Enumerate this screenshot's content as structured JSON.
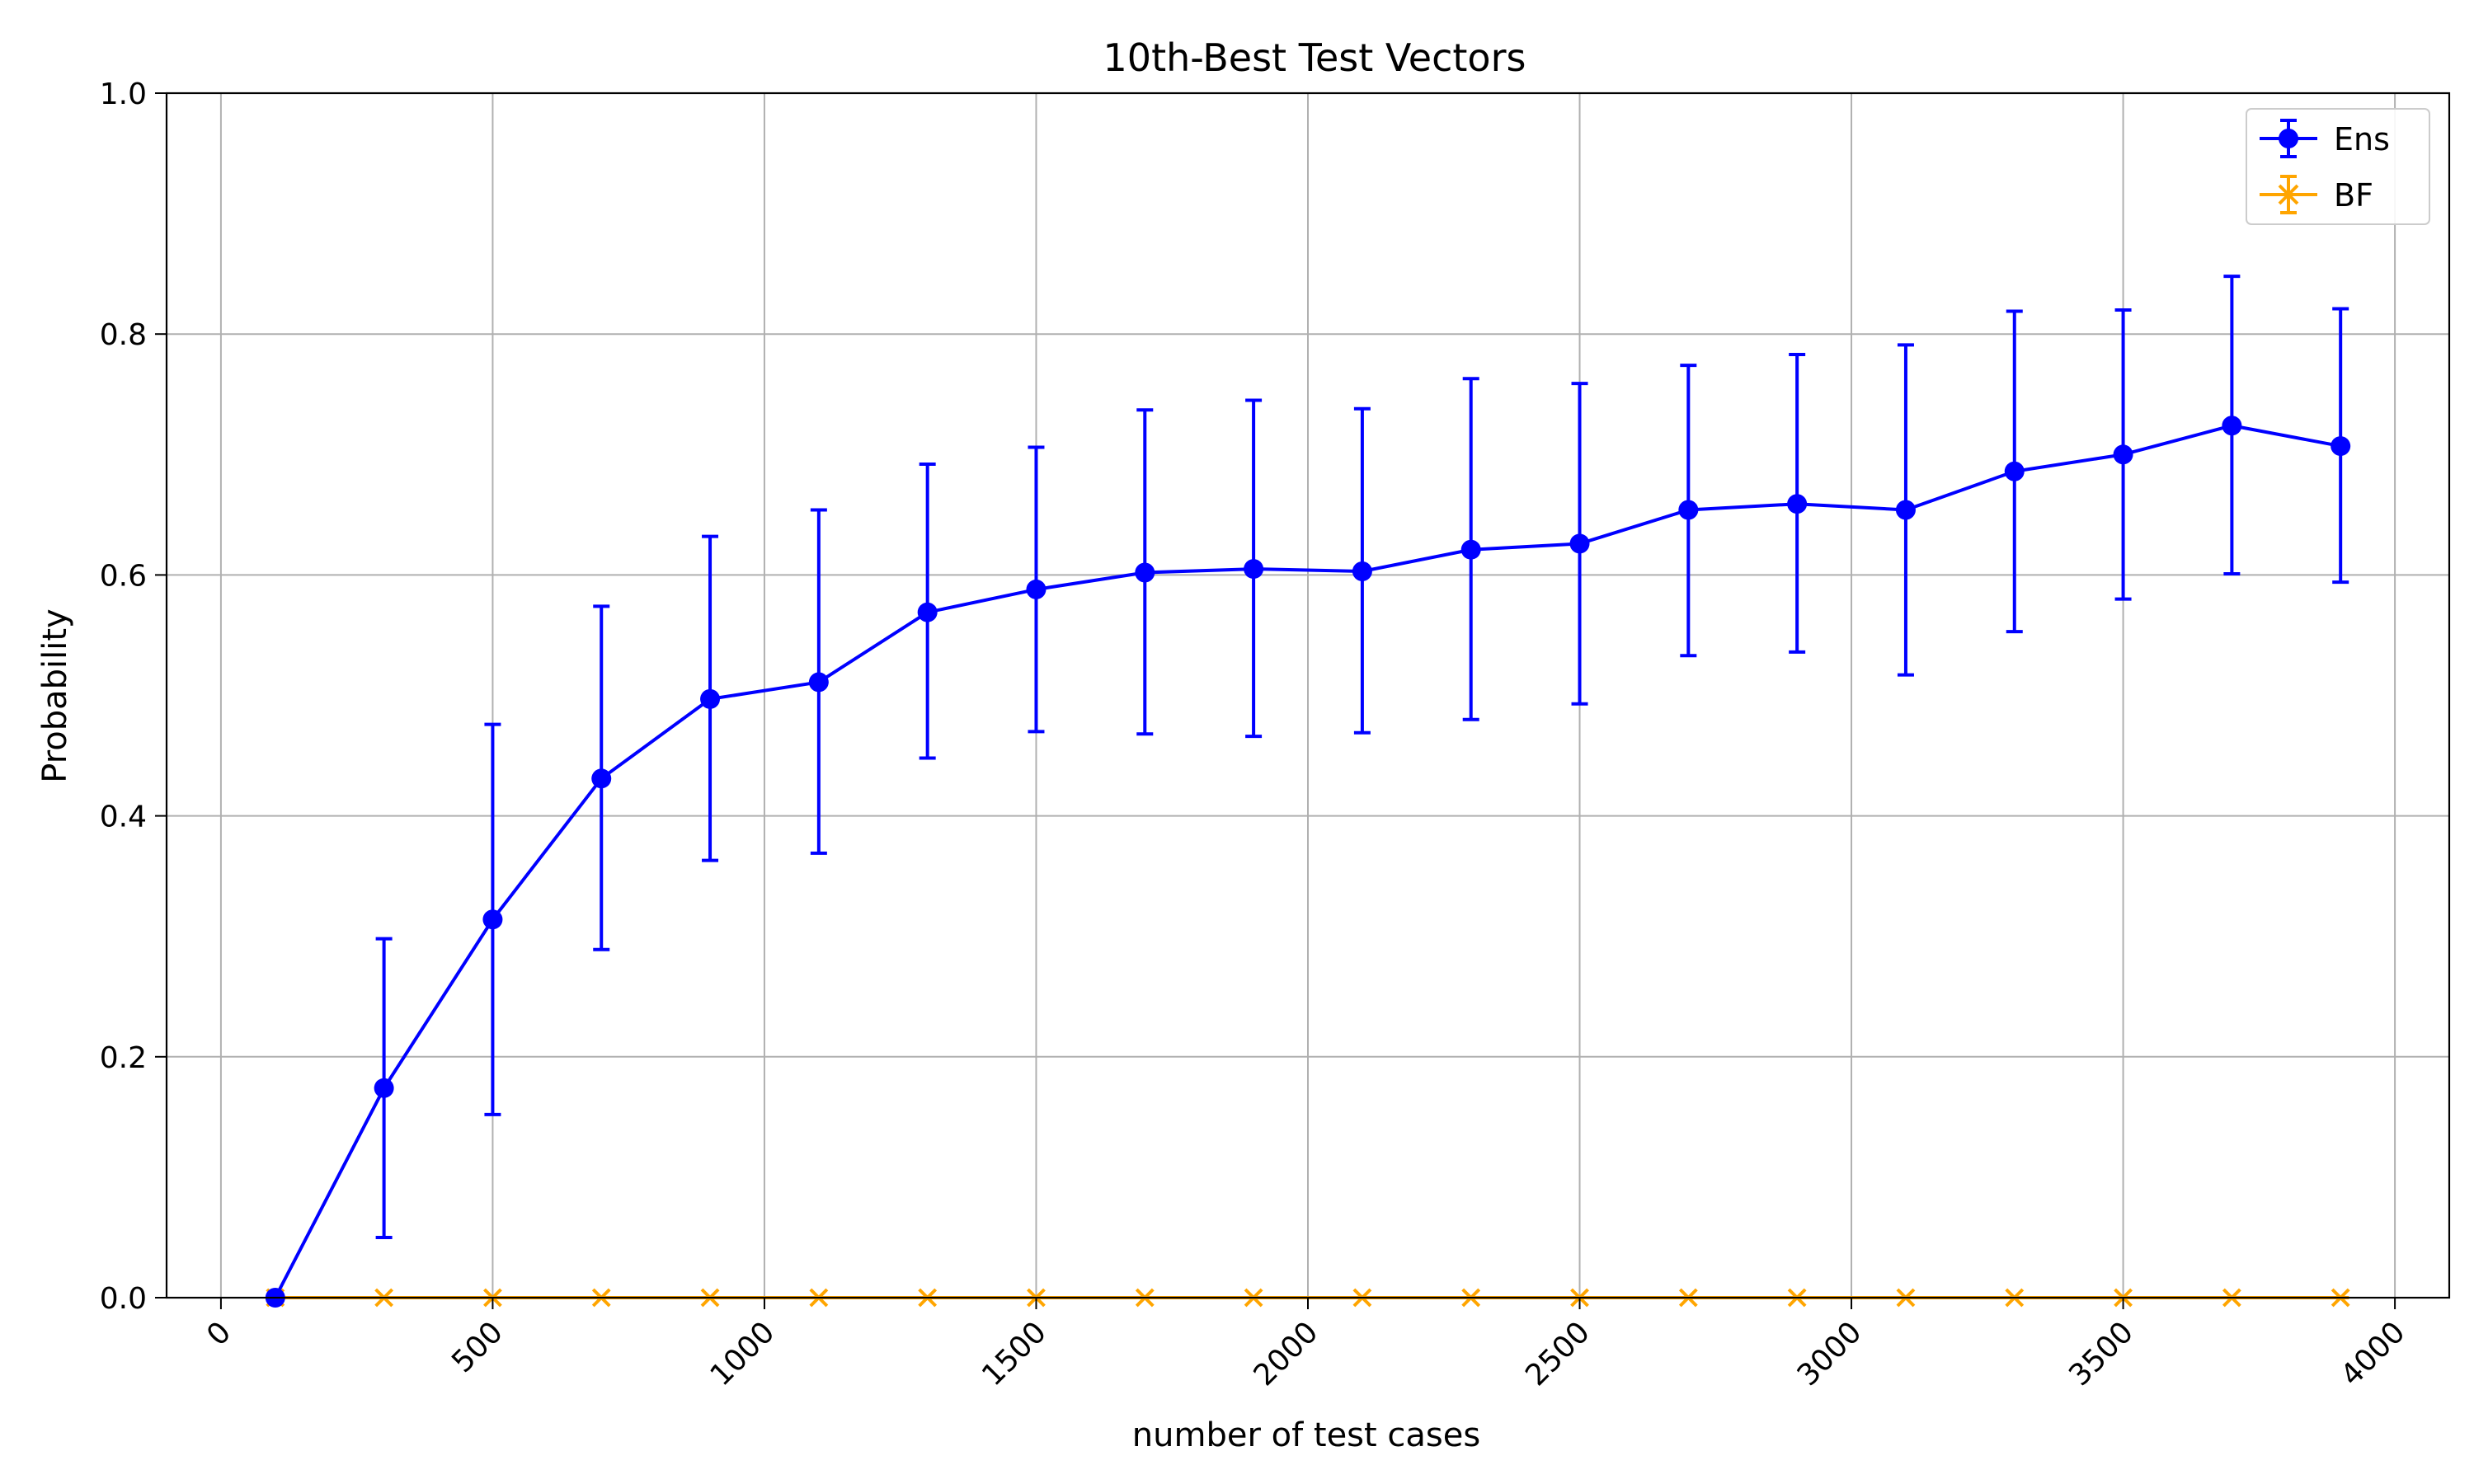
{
  "chart_data": {
    "type": "line",
    "title": "10th-Best Test Vectors",
    "xlabel": "number of test cases",
    "ylabel": "Probability",
    "xlim": [
      -100,
      4100
    ],
    "ylim": [
      0.0,
      1.0
    ],
    "grid": true,
    "legend_position": "top-right",
    "x_ticks": [
      0,
      500,
      1000,
      1500,
      2000,
      2500,
      3000,
      3500,
      4000
    ],
    "x_tick_labels": [
      "0",
      "500",
      "1000",
      "1500",
      "2000",
      "2500",
      "3000",
      "3500",
      "4000"
    ],
    "y_ticks": [
      0.0,
      0.2,
      0.4,
      0.6,
      0.8,
      1.0
    ],
    "y_tick_labels": [
      "0.0",
      "0.2",
      "0.4",
      "0.6",
      "0.8",
      "1.0"
    ],
    "x": [
      100,
      300,
      500,
      700,
      900,
      1100,
      1300,
      1500,
      1700,
      1900,
      2100,
      2300,
      2500,
      2700,
      2900,
      3100,
      3300,
      3500,
      3700,
      3900
    ],
    "series": [
      {
        "name": "Ens",
        "color": "#0000ff",
        "marker": "circle",
        "values": [
          0.0,
          0.174,
          0.314,
          0.431,
          0.497,
          0.511,
          0.569,
          0.588,
          0.602,
          0.605,
          0.603,
          0.621,
          0.626,
          0.654,
          0.659,
          0.654,
          0.686,
          0.7,
          0.724,
          0.707
        ],
        "err_low": [
          0.0,
          0.05,
          0.152,
          0.289,
          0.363,
          0.369,
          0.448,
          0.47,
          0.468,
          0.466,
          0.469,
          0.48,
          0.493,
          0.533,
          0.536,
          0.517,
          0.553,
          0.58,
          0.601,
          0.594
        ],
        "err_high": [
          0.0,
          0.298,
          0.476,
          0.574,
          0.632,
          0.654,
          0.692,
          0.706,
          0.737,
          0.745,
          0.738,
          0.763,
          0.759,
          0.774,
          0.783,
          0.791,
          0.819,
          0.82,
          0.848,
          0.821
        ]
      },
      {
        "name": "BF",
        "color": "#ffa500",
        "marker": "x",
        "values": [
          0.0,
          0.0,
          0.0,
          0.0,
          0.0,
          0.0,
          0.0,
          0.0,
          0.0,
          0.0,
          0.0,
          0.0,
          0.0,
          0.0,
          0.0,
          0.0,
          0.0,
          0.0,
          0.0,
          0.0
        ],
        "err_low": [
          0.0,
          0.0,
          0.0,
          0.0,
          0.0,
          0.0,
          0.0,
          0.0,
          0.0,
          0.0,
          0.0,
          0.0,
          0.0,
          0.0,
          0.0,
          0.0,
          0.0,
          0.0,
          0.0,
          0.0
        ],
        "err_high": [
          0.0,
          0.0,
          0.0,
          0.0,
          0.0,
          0.0,
          0.0,
          0.0,
          0.0,
          0.0,
          0.0,
          0.0,
          0.0,
          0.0,
          0.0,
          0.0,
          0.0,
          0.0,
          0.0,
          0.0
        ]
      }
    ]
  }
}
